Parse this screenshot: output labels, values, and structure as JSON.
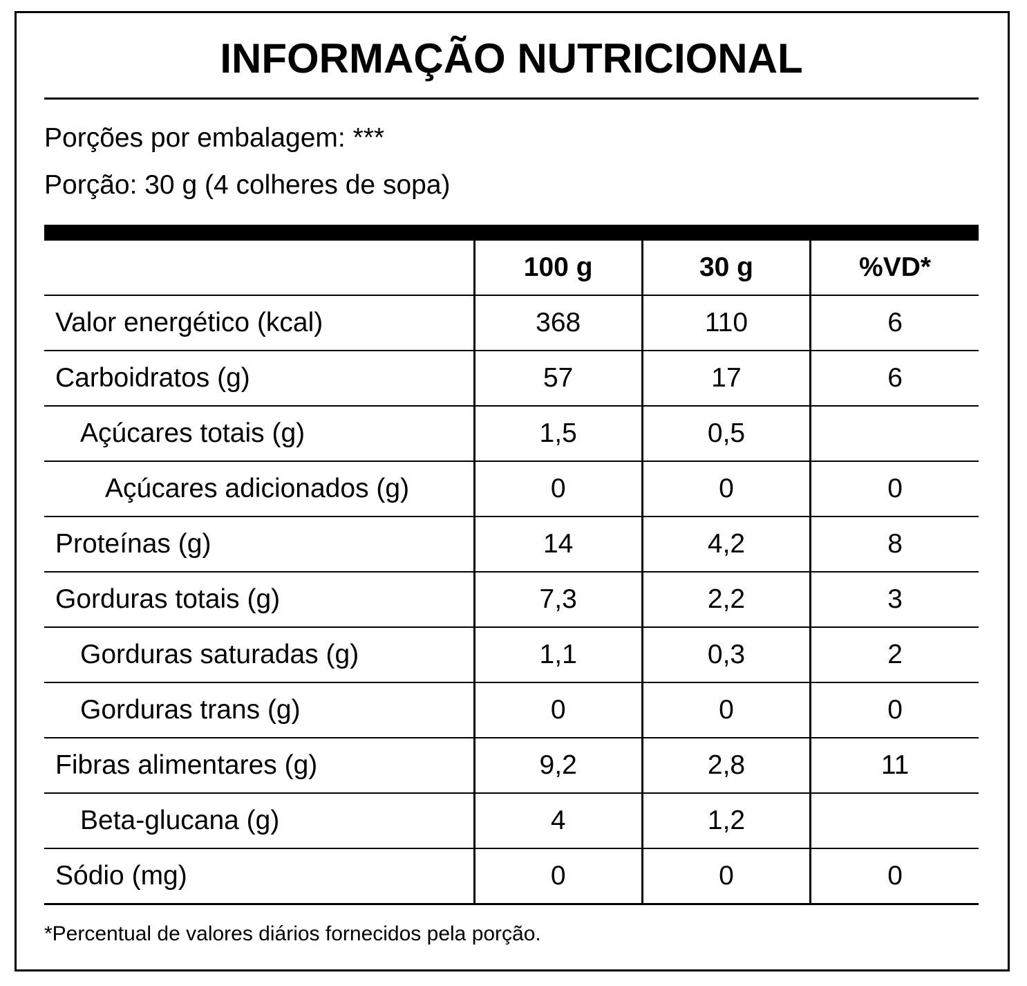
{
  "header": {
    "title": "INFORMAÇÃO NUTRICIONAL",
    "servings_per_package": "Porções por embalagem: ***",
    "serving": "Porção: 30 g (4 colheres de sopa)"
  },
  "table": {
    "columns": [
      "100 g",
      "30 g",
      "%VD*"
    ],
    "rows": [
      [
        "Valor energético (kcal)",
        "368",
        "110",
        "6"
      ],
      [
        "Carboidratos (g)",
        "57",
        "17",
        "6"
      ],
      [
        "Açúcares totais (g)",
        "1,5",
        "0,5",
        null
      ],
      [
        "Açúcares adicionados (g)",
        "0",
        "0",
        "0"
      ],
      [
        "Proteínas (g)",
        "14",
        "4,2",
        "8"
      ],
      [
        "Gorduras totais (g)",
        "7,3",
        "2,2",
        "3"
      ],
      [
        "Gorduras saturadas (g)",
        "1,1",
        "0,3",
        "2"
      ],
      [
        "Gorduras trans (g)",
        "0",
        "0",
        "0"
      ],
      [
        "Fibras alimentares (g)",
        "9,2",
        "2,8",
        "11"
      ],
      [
        "Beta-glucana (g)",
        "4",
        "1,2",
        null
      ],
      [
        "Sódio (mg)",
        "0",
        "0",
        "0"
      ]
    ]
  },
  "footnote": "*Percentual de valores diários fornecidos pela porção."
}
